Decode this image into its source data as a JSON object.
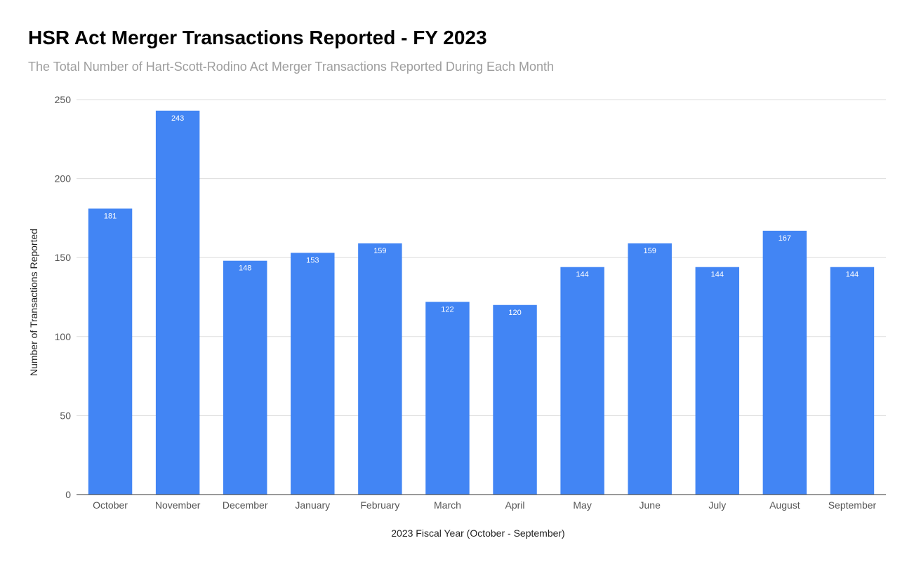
{
  "colors": {
    "bar": "#4285f4",
    "grid": "#dddddd",
    "axis": "#333333"
  },
  "chart_data": {
    "type": "bar",
    "title": "HSR Act Merger Transactions Reported - FY 2023",
    "subtitle": "The Total Number of Hart-Scott-Rodino Act Merger Transactions Reported During Each Month",
    "xlabel": "2023 Fiscal Year (October - September)",
    "ylabel": "Number of Transactions Reported",
    "ylim": [
      0,
      250
    ],
    "yticks": [
      0,
      50,
      100,
      150,
      200,
      250
    ],
    "grid": true,
    "categories": [
      "October",
      "November",
      "December",
      "January",
      "February",
      "March",
      "April",
      "May",
      "June",
      "July",
      "August",
      "September"
    ],
    "values": [
      181,
      243,
      148,
      153,
      159,
      122,
      120,
      144,
      159,
      144,
      167,
      144
    ],
    "data_labels": true
  }
}
